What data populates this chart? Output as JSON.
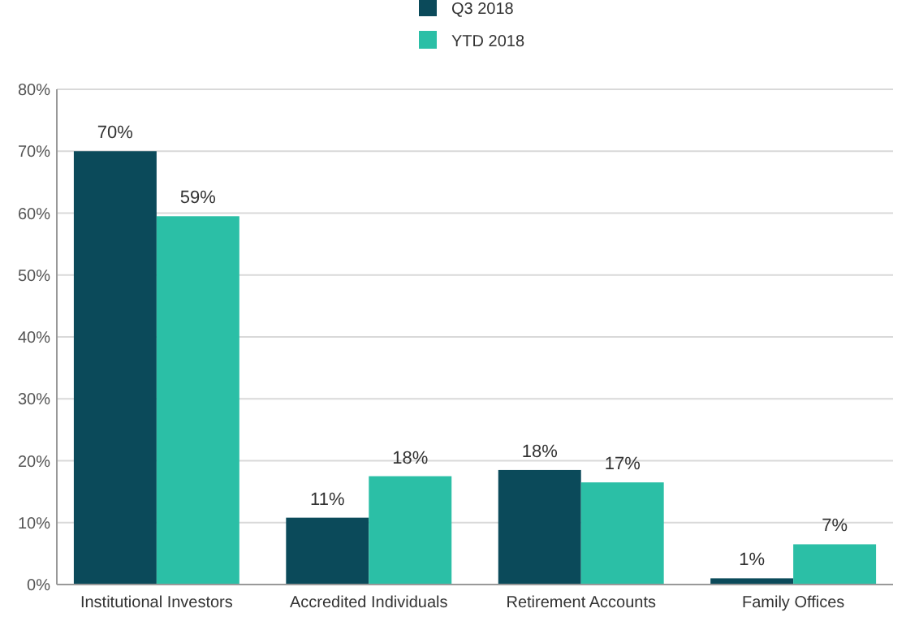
{
  "chart_data": {
    "type": "bar",
    "categories": [
      "Institutional Investors",
      "Accredited Individuals",
      "Retirement Accounts",
      "Family Offices"
    ],
    "series": [
      {
        "name": "Q3 2018",
        "color": "#0b4a5a",
        "values": [
          70,
          10.8,
          18.5,
          1
        ],
        "value_labels": [
          "70%",
          "11%",
          "18%",
          "1%"
        ]
      },
      {
        "name": "YTD 2018",
        "color": "#2bbfa6",
        "values": [
          59.5,
          17.5,
          16.5,
          6.5
        ],
        "value_labels": [
          "59%",
          "18%",
          "17%",
          "7%"
        ]
      }
    ],
    "ylim": [
      0,
      80
    ],
    "yticks": [
      {
        "value": 0,
        "label": "0%"
      },
      {
        "value": 10,
        "label": "10%"
      },
      {
        "value": 20,
        "label": "20%"
      },
      {
        "value": 30,
        "label": "30%"
      },
      {
        "value": 40,
        "label": "40%"
      },
      {
        "value": 50,
        "label": "50%"
      },
      {
        "value": 60,
        "label": "60%"
      },
      {
        "value": 70,
        "label": "70%"
      },
      {
        "value": 80,
        "label": "80%"
      }
    ],
    "grid": "y",
    "legend": "top"
  }
}
